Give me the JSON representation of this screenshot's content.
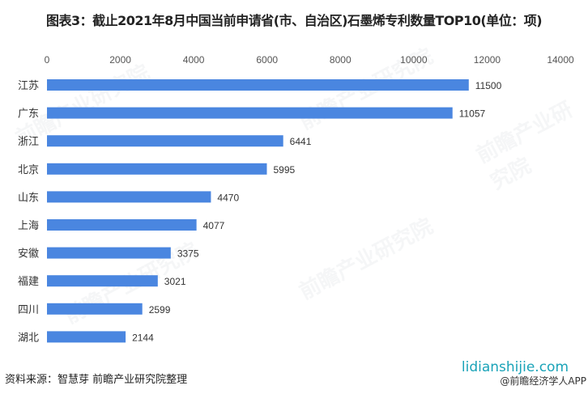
{
  "title": "图表3：截止2021年8月中国当前申请省(市、自治区)石墨烯专利数量TOP10(单位：项)",
  "footer": {
    "source": "资料来源：智慧芽 前瞻产业研究院整理",
    "site": "lidianshijie.com",
    "app": "@前瞻经济学人APP"
  },
  "watermark": "前瞻产业研究院",
  "chart_data": {
    "type": "bar",
    "orientation": "horizontal",
    "title": "图表3：截止2021年8月中国当前申请省(市、自治区)石墨烯专利数量TOP10(单位：项)",
    "categories": [
      "江苏",
      "广东",
      "浙江",
      "北京",
      "山东",
      "上海",
      "安徽",
      "福建",
      "四川",
      "湖北"
    ],
    "values": [
      11500,
      11057,
      6441,
      5995,
      4470,
      4077,
      3375,
      3021,
      2599,
      2144
    ],
    "xlim": [
      0,
      14000
    ],
    "xticks": [
      "0",
      "2000",
      "4000",
      "6000",
      "8000",
      "10000",
      "12000",
      "14000"
    ],
    "axis_position": "top",
    "grid": false,
    "color": "#4a86e0"
  }
}
